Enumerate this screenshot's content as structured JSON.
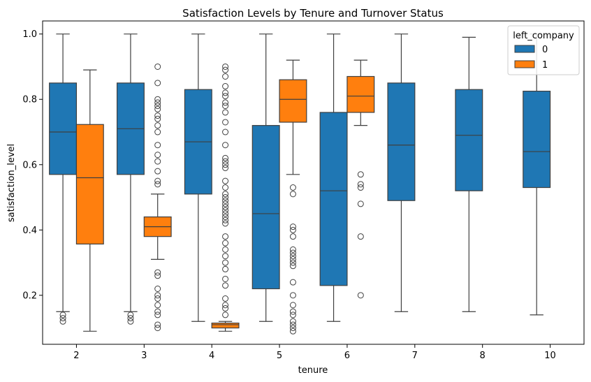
{
  "chart_data": {
    "type": "box",
    "title": "Satisfaction Levels by Tenure and Turnover Status",
    "xlabel": "tenure",
    "ylabel": "satisfaction_level",
    "categories": [
      "2",
      "3",
      "4",
      "5",
      "6",
      "7",
      "8",
      "10"
    ],
    "ylim": [
      0.05,
      1.04
    ],
    "yticks": [
      0.2,
      0.4,
      0.6,
      0.8,
      1.0
    ],
    "ytick_labels": [
      "0.2",
      "0.4",
      "0.6",
      "0.8",
      "1.0"
    ],
    "grid": false,
    "legend": {
      "title": "left_company",
      "placement": "top-right"
    },
    "series": [
      {
        "name": "0",
        "color": "#1f77b4",
        "boxes": [
          {
            "category": "2",
            "whislo": 0.15,
            "q1": 0.57,
            "med": 0.7,
            "q3": 0.85,
            "whishi": 1.0,
            "fliers": [
              0.12,
              0.13,
              0.14
            ]
          },
          {
            "category": "3",
            "whislo": 0.15,
            "q1": 0.57,
            "med": 0.71,
            "q3": 0.85,
            "whishi": 1.0,
            "fliers": [
              0.12,
              0.13,
              0.14
            ]
          },
          {
            "category": "4",
            "whislo": 0.12,
            "q1": 0.51,
            "med": 0.67,
            "q3": 0.83,
            "whishi": 1.0,
            "fliers": []
          },
          {
            "category": "5",
            "whislo": 0.12,
            "q1": 0.22,
            "med": 0.45,
            "q3": 0.72,
            "whishi": 1.0,
            "fliers": []
          },
          {
            "category": "6",
            "whislo": 0.12,
            "q1": 0.23,
            "med": 0.52,
            "q3": 0.76,
            "whishi": 1.0,
            "fliers": []
          },
          {
            "category": "7",
            "whislo": 0.15,
            "q1": 0.49,
            "med": 0.66,
            "q3": 0.85,
            "whishi": 1.0,
            "fliers": []
          },
          {
            "category": "8",
            "whislo": 0.15,
            "q1": 0.52,
            "med": 0.69,
            "q3": 0.83,
            "whishi": 0.99,
            "fliers": []
          },
          {
            "category": "10",
            "whislo": 0.14,
            "q1": 0.53,
            "med": 0.64,
            "q3": 0.825,
            "whishi": 1.0,
            "fliers": []
          }
        ]
      },
      {
        "name": "1",
        "color": "#ff7f0e",
        "boxes": [
          {
            "category": "2",
            "whislo": 0.09,
            "q1": 0.357,
            "med": 0.56,
            "q3": 0.723,
            "whishi": 0.89,
            "fliers": []
          },
          {
            "category": "3",
            "whislo": 0.31,
            "q1": 0.38,
            "med": 0.41,
            "q3": 0.44,
            "whishi": 0.51,
            "fliers": [
              0.1,
              0.11,
              0.14,
              0.15,
              0.17,
              0.19,
              0.2,
              0.22,
              0.26,
              0.27,
              0.54,
              0.55,
              0.58,
              0.61,
              0.63,
              0.66,
              0.7,
              0.72,
              0.74,
              0.75,
              0.77,
              0.78,
              0.79,
              0.8,
              0.85,
              0.9
            ]
          },
          {
            "category": "4",
            "whislo": 0.09,
            "q1": 0.1,
            "med": 0.11,
            "q3": 0.115,
            "whishi": 0.12,
            "fliers": [
              0.14,
              0.16,
              0.17,
              0.19,
              0.23,
              0.25,
              0.28,
              0.3,
              0.32,
              0.34,
              0.36,
              0.38,
              0.42,
              0.43,
              0.44,
              0.45,
              0.46,
              0.47,
              0.48,
              0.49,
              0.5,
              0.51,
              0.53,
              0.55,
              0.59,
              0.6,
              0.61,
              0.62,
              0.66,
              0.7,
              0.73,
              0.76,
              0.78,
              0.79,
              0.81,
              0.82,
              0.84,
              0.87,
              0.89,
              0.9
            ]
          },
          {
            "category": "5",
            "whislo": 0.57,
            "q1": 0.73,
            "med": 0.8,
            "q3": 0.86,
            "whishi": 0.92,
            "fliers": [
              0.09,
              0.1,
              0.11,
              0.12,
              0.14,
              0.15,
              0.17,
              0.2,
              0.24,
              0.29,
              0.3,
              0.31,
              0.32,
              0.33,
              0.34,
              0.38,
              0.4,
              0.41,
              0.51,
              0.53
            ]
          },
          {
            "category": "6",
            "whislo": 0.72,
            "q1": 0.76,
            "med": 0.81,
            "q3": 0.87,
            "whishi": 0.92,
            "fliers": [
              0.2,
              0.38,
              0.48,
              0.53,
              0.54,
              0.57
            ]
          }
        ]
      }
    ]
  }
}
